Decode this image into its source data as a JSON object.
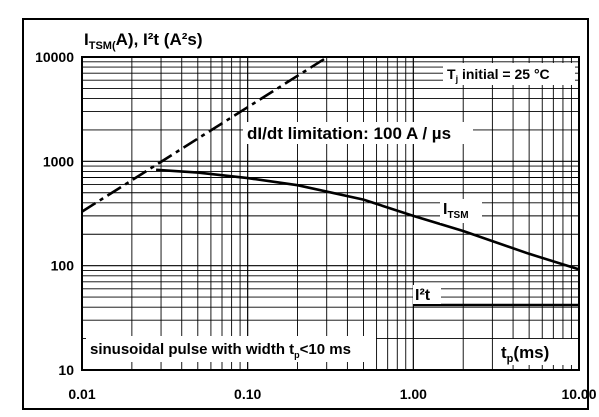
{
  "chart_data": {
    "type": "line",
    "title": "",
    "ylabel_parts": {
      "main": "I",
      "sub": "TSM(",
      "rest": "A), I²t (A²s)"
    },
    "xlabel_parts": {
      "main": "t",
      "sub": "p",
      "rest": "(ms)"
    },
    "x_scale": "log",
    "y_scale": "log",
    "xlim": [
      0.01,
      10
    ],
    "ylim": [
      10,
      10000
    ],
    "x_tick_labels": [
      "0.01",
      "0.10",
      "1.00",
      "10.00"
    ],
    "y_tick_labels": [
      "10",
      "100",
      "1000",
      "10000"
    ],
    "grid": true,
    "series": [
      {
        "name": "dI/dt limitation: 100 A / µs",
        "style": "dash-dot",
        "x": [
          0.01,
          0.02,
          0.05,
          0.1,
          0.2,
          0.3
        ],
        "y": [
          330,
          660,
          1650,
          3300,
          6600,
          9900
        ]
      },
      {
        "name": "I_TSM",
        "style": "solid",
        "x": [
          0.028,
          0.05,
          0.1,
          0.2,
          0.5,
          1,
          2,
          5,
          10
        ],
        "y": [
          830,
          780,
          690,
          590,
          430,
          300,
          215,
          130,
          92
        ]
      },
      {
        "name": "I²t",
        "style": "solid",
        "x": [
          1,
          10
        ],
        "y": [
          42,
          42
        ]
      }
    ],
    "annotations": {
      "didt": "dI/dt limitation: 100 A / µs",
      "tj_parts": {
        "main": "T",
        "sub": "j",
        "rest": " initial = 25 °C"
      },
      "itsm_parts": {
        "main": "I",
        "sub": "TSM"
      },
      "i2t_label": "I²t",
      "pulse_parts": {
        "main": "sinusoidal pulse with width t",
        "sub": "p",
        "rest": "<10 ms"
      }
    }
  }
}
